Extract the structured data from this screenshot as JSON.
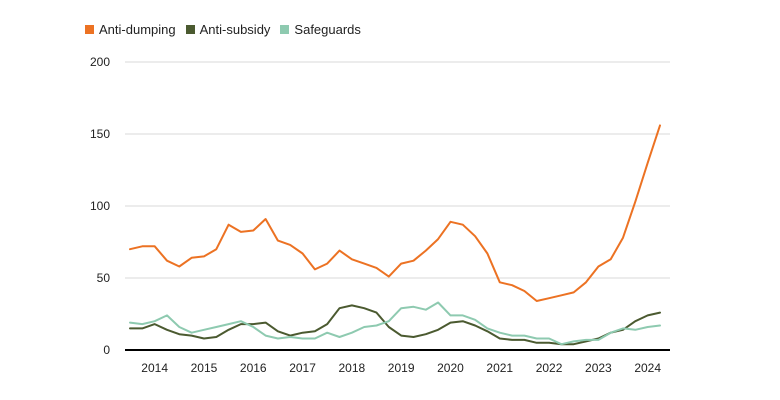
{
  "chart_data": {
    "type": "line",
    "title": "",
    "xlabel": "",
    "ylabel": "",
    "ylim": [
      0,
      200
    ],
    "yticks": [
      0,
      50,
      100,
      150,
      200
    ],
    "grid": "horizontal",
    "legend_position": "top-left",
    "x_tick_labels": [
      "2014",
      "2015",
      "2016",
      "2017",
      "2018",
      "2019",
      "2020",
      "2021",
      "2022",
      "2023",
      "2024"
    ],
    "x": [
      "2013Q3",
      "2013Q4",
      "2014Q1",
      "2014Q2",
      "2014Q3",
      "2014Q4",
      "2015Q1",
      "2015Q2",
      "2015Q3",
      "2015Q4",
      "2016Q1",
      "2016Q2",
      "2016Q3",
      "2016Q4",
      "2017Q1",
      "2017Q2",
      "2017Q3",
      "2017Q4",
      "2018Q1",
      "2018Q2",
      "2018Q3",
      "2018Q4",
      "2019Q1",
      "2019Q2",
      "2019Q3",
      "2019Q4",
      "2020Q1",
      "2020Q2",
      "2020Q3",
      "2020Q4",
      "2021Q1",
      "2021Q2",
      "2021Q3",
      "2021Q4",
      "2022Q1",
      "2022Q2",
      "2022Q3",
      "2022Q4",
      "2023Q1",
      "2023Q2",
      "2023Q3",
      "2023Q4",
      "2024Q1",
      "2024Q2"
    ],
    "series": [
      {
        "name": "Anti-dumping",
        "color": "#ec7223",
        "values": [
          70,
          72,
          72,
          62,
          58,
          64,
          65,
          70,
          87,
          82,
          83,
          91,
          76,
          73,
          67,
          56,
          60,
          69,
          63,
          60,
          57,
          51,
          60,
          62,
          69,
          77,
          89,
          87,
          79,
          67,
          47,
          45,
          41,
          34,
          36,
          38,
          40,
          47,
          58,
          63,
          78,
          103,
          130,
          156
        ]
      },
      {
        "name": "Anti-subsidy",
        "color": "#4b5a30",
        "values": [
          15,
          15,
          18,
          14,
          11,
          10,
          8,
          9,
          14,
          18,
          18,
          19,
          13,
          10,
          12,
          13,
          18,
          29,
          31,
          29,
          26,
          16,
          10,
          9,
          11,
          14,
          19,
          20,
          17,
          13,
          8,
          7,
          7,
          5,
          5,
          4,
          4,
          6,
          8,
          12,
          14,
          20,
          24,
          26
        ]
      },
      {
        "name": "Safeguards",
        "color": "#8ecab0",
        "values": [
          19,
          18,
          20,
          24,
          16,
          12,
          14,
          16,
          18,
          20,
          16,
          10,
          8,
          9,
          8,
          8,
          12,
          9,
          12,
          16,
          17,
          20,
          29,
          30,
          28,
          33,
          24,
          24,
          21,
          15,
          12,
          10,
          10,
          8,
          8,
          4,
          6,
          7,
          7,
          12,
          15,
          14,
          16,
          17
        ]
      }
    ]
  }
}
